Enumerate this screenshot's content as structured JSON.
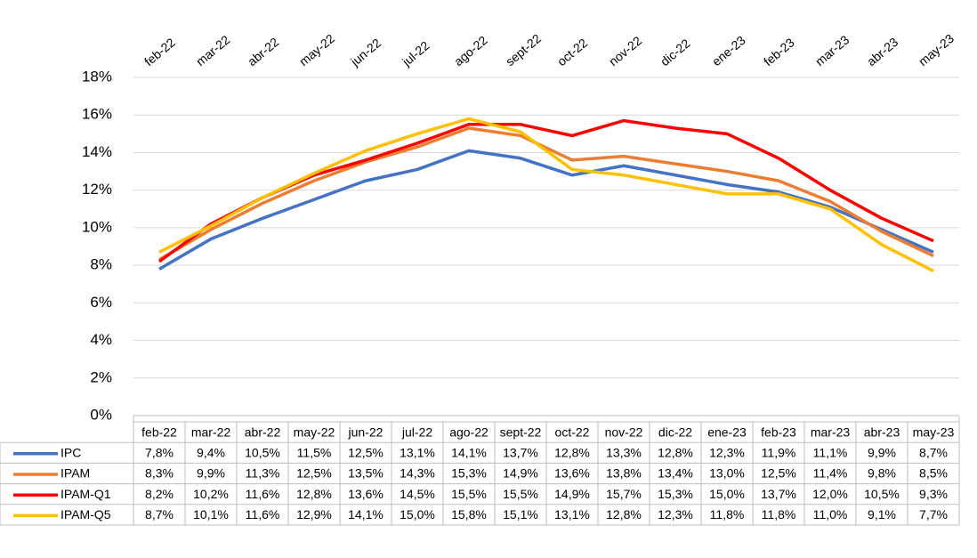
{
  "chart_data": {
    "type": "line",
    "categories": [
      "feb-22",
      "mar-22",
      "abr-22",
      "may-22",
      "jun-22",
      "jul-22",
      "ago-22",
      "sept-22",
      "oct-22",
      "nov-22",
      "dic-22",
      "ene-23",
      "feb-23",
      "mar-23",
      "abr-23",
      "may-23"
    ],
    "ylim": [
      0,
      18
    ],
    "yticks": [
      {
        "value": 0,
        "label": "0%"
      },
      {
        "value": 2,
        "label": "2%"
      },
      {
        "value": 4,
        "label": "4%"
      },
      {
        "value": 6,
        "label": "6%"
      },
      {
        "value": 8,
        "label": "8%"
      },
      {
        "value": 10,
        "label": "10%"
      },
      {
        "value": 12,
        "label": "12%"
      },
      {
        "value": 14,
        "label": "14%"
      },
      {
        "value": 16,
        "label": "16%"
      },
      {
        "value": 18,
        "label": "18%"
      }
    ],
    "grid": true,
    "series": [
      {
        "name": "IPC",
        "color": "#4472c4",
        "values": [
          7.8,
          9.4,
          10.5,
          11.5,
          12.5,
          13.1,
          14.1,
          13.7,
          12.8,
          13.3,
          12.8,
          12.3,
          11.9,
          11.1,
          9.9,
          8.7
        ],
        "value_labels": [
          "7,8%",
          "9,4%",
          "10,5%",
          "11,5%",
          "12,5%",
          "13,1%",
          "14,1%",
          "13,7%",
          "12,8%",
          "13,3%",
          "12,8%",
          "12,3%",
          "11,9%",
          "11,1%",
          "9,9%",
          "8,7%"
        ]
      },
      {
        "name": "IPAM",
        "color": "#ed7d31",
        "values": [
          8.3,
          9.9,
          11.3,
          12.5,
          13.5,
          14.3,
          15.3,
          14.9,
          13.6,
          13.8,
          13.4,
          13.0,
          12.5,
          11.4,
          9.8,
          8.5
        ],
        "value_labels": [
          "8,3%",
          "9,9%",
          "11,3%",
          "12,5%",
          "13,5%",
          "14,3%",
          "15,3%",
          "14,9%",
          "13,6%",
          "13,8%",
          "13,4%",
          "13,0%",
          "12,5%",
          "11,4%",
          "9,8%",
          "8,5%"
        ]
      },
      {
        "name": "IPAM-Q1",
        "color": "#ff0000",
        "values": [
          8.2,
          10.2,
          11.6,
          12.8,
          13.6,
          14.5,
          15.5,
          15.5,
          14.9,
          15.7,
          15.3,
          15.0,
          13.7,
          12.0,
          10.5,
          9.3
        ],
        "value_labels": [
          "8,2%",
          "10,2%",
          "11,6%",
          "12,8%",
          "13,6%",
          "14,5%",
          "15,5%",
          "15,5%",
          "14,9%",
          "15,7%",
          "15,3%",
          "15,0%",
          "13,7%",
          "12,0%",
          "10,5%",
          "9,3%"
        ]
      },
      {
        "name": "IPAM-Q5",
        "color": "#ffc000",
        "values": [
          8.7,
          10.1,
          11.6,
          12.9,
          14.1,
          15.0,
          15.8,
          15.1,
          13.1,
          12.8,
          12.3,
          11.8,
          11.8,
          11.0,
          9.1,
          7.7
        ],
        "value_labels": [
          "8,7%",
          "10,1%",
          "11,6%",
          "12,9%",
          "14,1%",
          "15,0%",
          "15,8%",
          "15,1%",
          "13,1%",
          "12,8%",
          "12,3%",
          "11,8%",
          "11,8%",
          "11,0%",
          "9,1%",
          "7,7%"
        ]
      }
    ]
  }
}
